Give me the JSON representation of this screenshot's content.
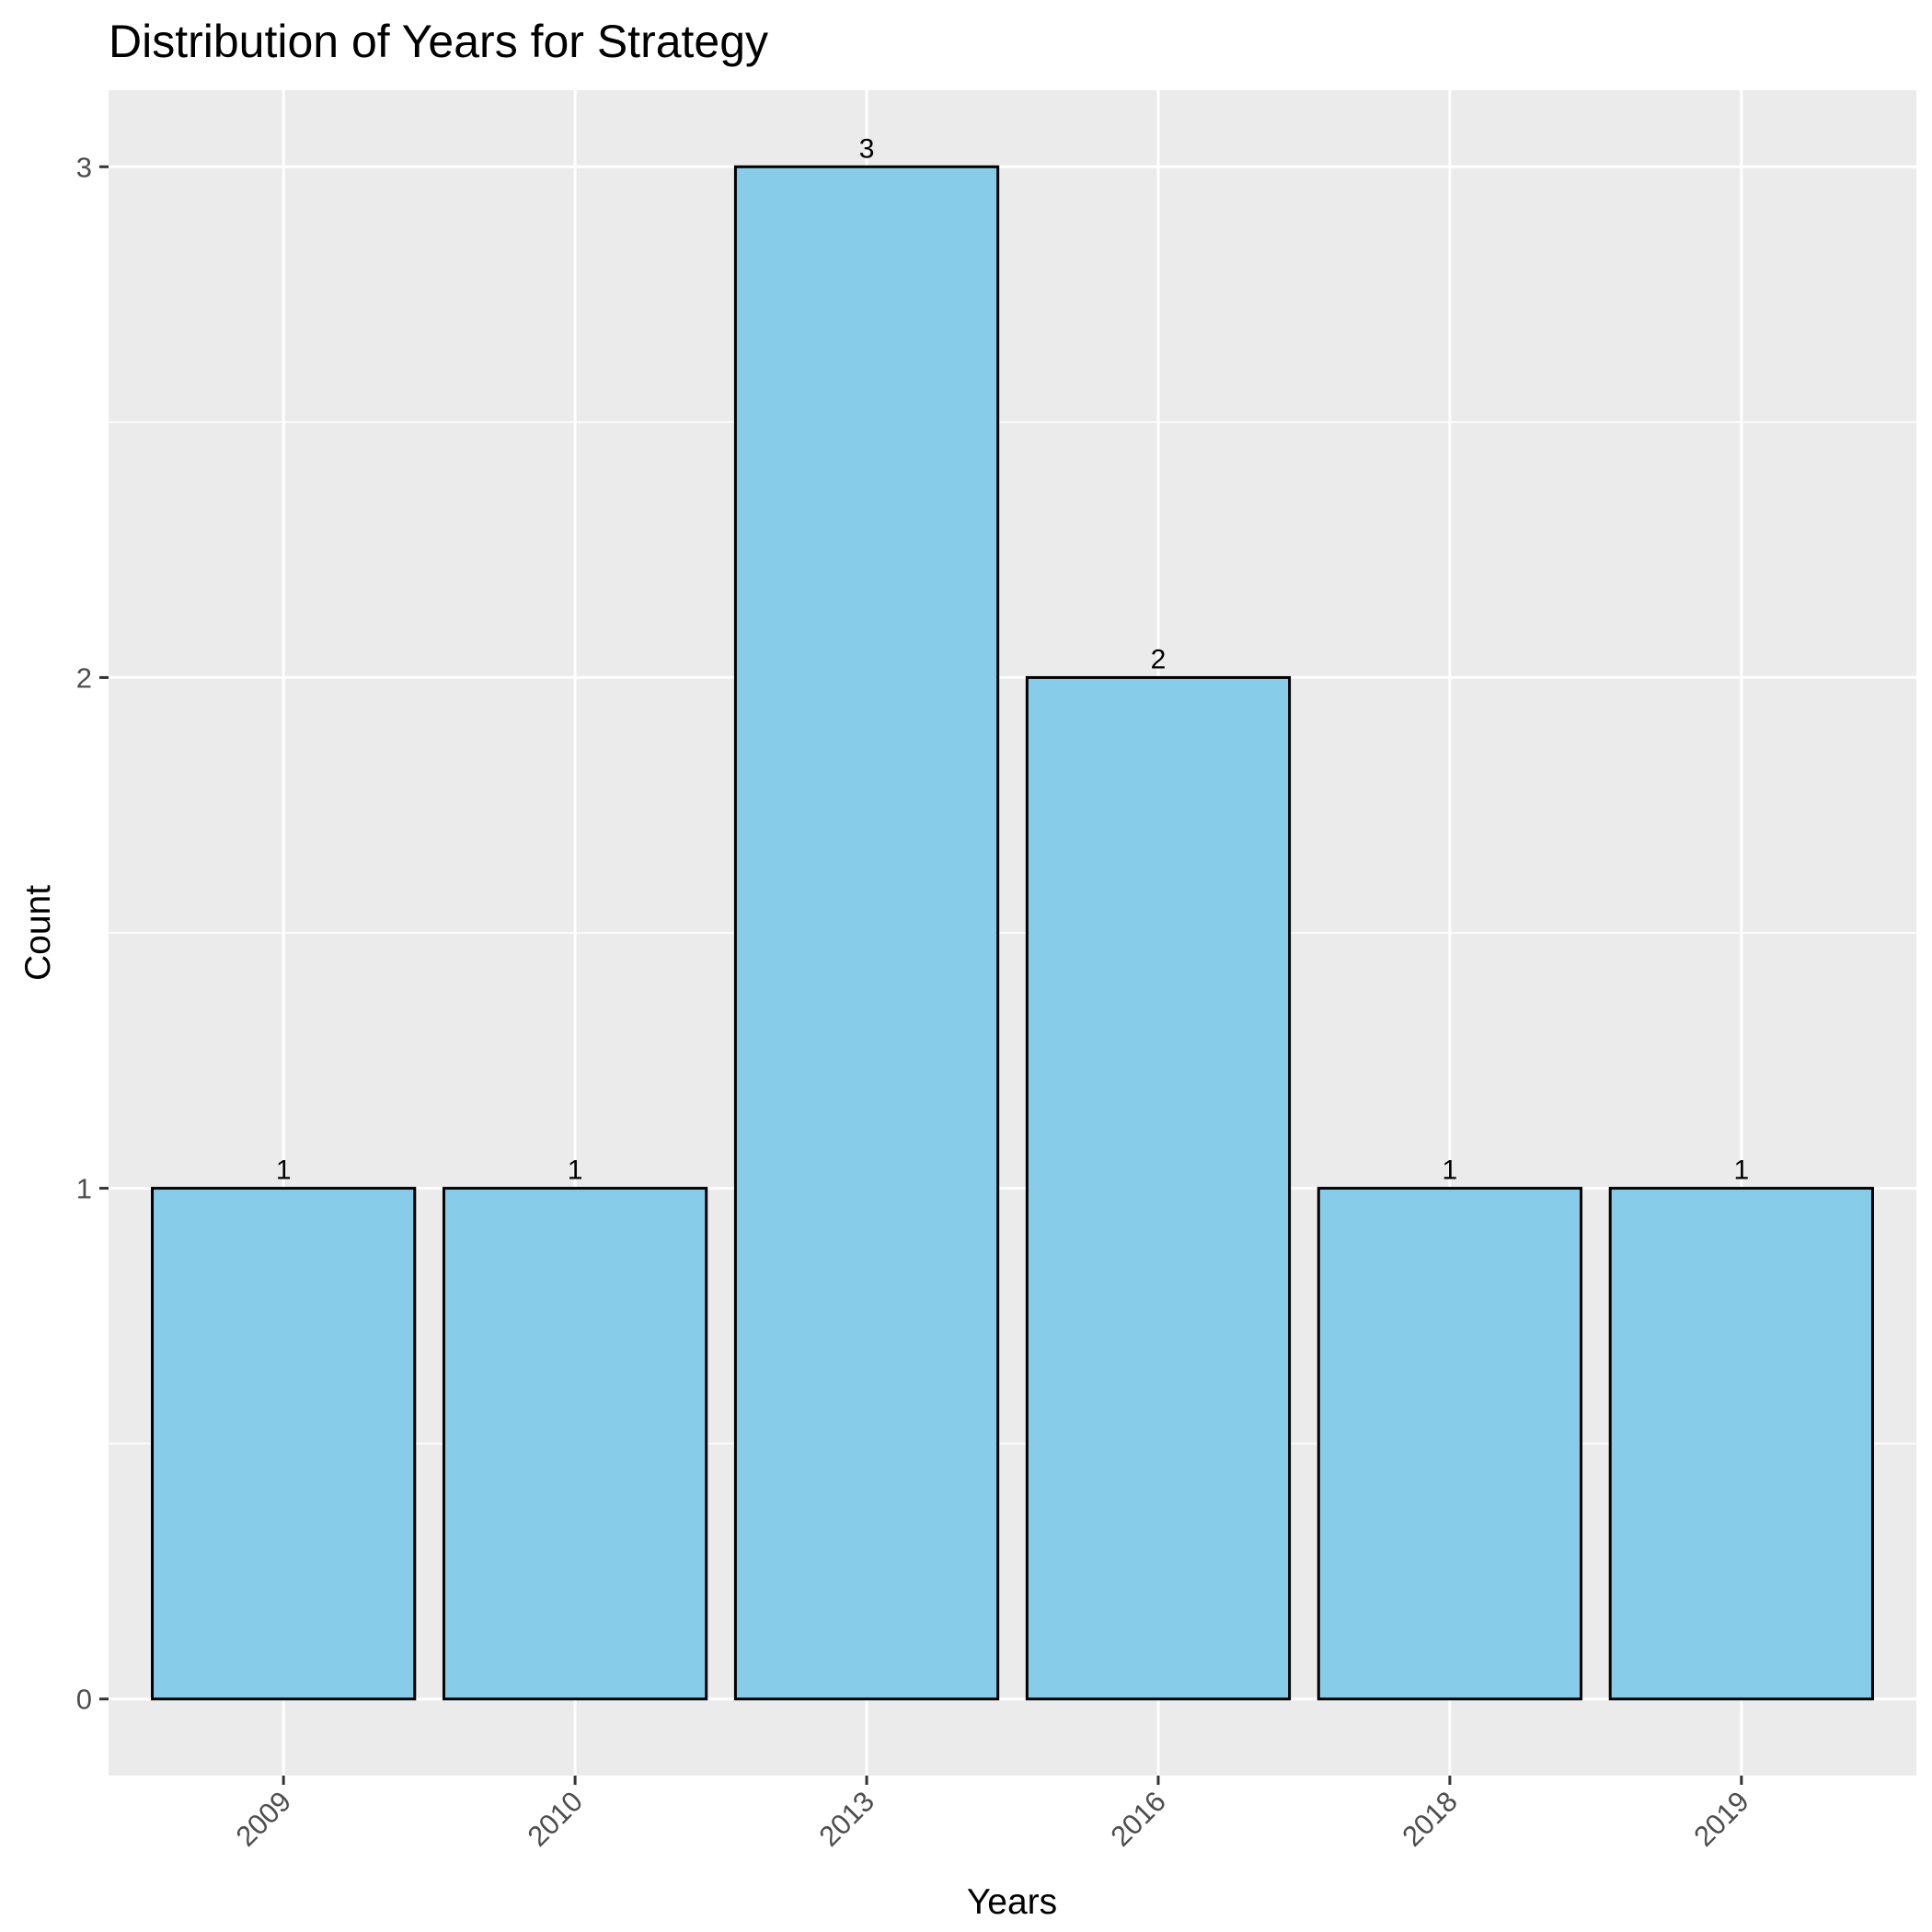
{
  "chart_data": {
    "type": "bar",
    "title": "Distribution of Years for Strategy",
    "xlabel": "Years",
    "ylabel": "Count",
    "categories": [
      "2009",
      "2010",
      "2013",
      "2016",
      "2018",
      "2019"
    ],
    "values": [
      1,
      1,
      3,
      2,
      1,
      1
    ],
    "yticks": [
      0,
      1,
      2,
      3
    ],
    "ylim": [
      -0.15,
      3.15
    ],
    "grid": true,
    "legend": "none",
    "bar_fill": "#87CDEA",
    "bar_stroke": "#000000",
    "panel_background": "#EBEBEB",
    "gridline_color": "#FFFFFF"
  }
}
